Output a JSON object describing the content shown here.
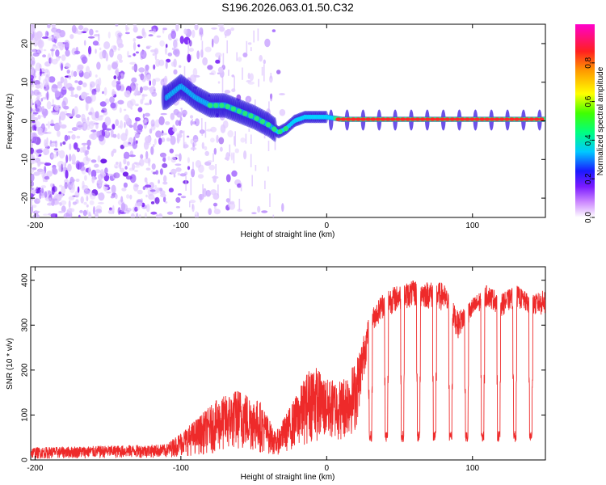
{
  "title": "S196.2026.063.01.50.C32",
  "chart_data": [
    {
      "type": "heatmap",
      "name": "spectrogram",
      "xlabel": "Height of straight line (km)",
      "ylabel": "Frequency (Hz)",
      "xlim": [
        -203,
        150
      ],
      "ylim": [
        -25,
        25
      ],
      "xticks": [
        -200,
        -100,
        0,
        100
      ],
      "xtick_labels": [
        "-200",
        "-100",
        "0",
        "100"
      ],
      "yticks": [
        20,
        10,
        0,
        -10,
        -20
      ],
      "ytick_labels": [
        "20",
        "10",
        "0",
        "-10",
        "-20"
      ],
      "signal_track": {
        "x": [
          -110,
          -100,
          -90,
          -80,
          -70,
          -60,
          -50,
          -40,
          -33,
          -28,
          -22,
          -15,
          -10,
          0,
          10,
          150
        ],
        "freq": [
          6,
          9,
          6,
          4,
          4,
          2.5,
          1,
          -1,
          -3,
          -2,
          0,
          1,
          1,
          1,
          0.4,
          0.4
        ]
      },
      "colorbar": {
        "label": "Normalized spectral amplitude",
        "range": [
          0,
          1
        ],
        "ticks": [
          0.0,
          0.2,
          0.4,
          0.6,
          0.8
        ],
        "tick_labels": [
          "0.0",
          "0.2",
          "0.4",
          "0.6",
          "0.8"
        ]
      }
    },
    {
      "type": "line",
      "name": "snr",
      "xlabel": "Height of straight line (km)",
      "ylabel": "SNR (10 * v/v)",
      "xlim": [
        -203,
        150
      ],
      "ylim": [
        0,
        430
      ],
      "xticks": [
        -200,
        -100,
        0,
        100
      ],
      "xtick_labels": [
        "-200",
        "-100",
        "0",
        "100"
      ],
      "yticks": [
        0,
        100,
        200,
        300,
        400
      ],
      "ytick_labels": [
        "0",
        "100",
        "200",
        "300",
        "400"
      ],
      "color": "#ee2a2a",
      "envelope": {
        "x": [
          -203,
          -110,
          -90,
          -75,
          -60,
          -45,
          -35,
          -20,
          -10,
          0,
          10,
          20,
          30,
          40,
          60,
          80,
          90,
          100,
          110,
          120,
          130,
          140,
          150
        ],
        "upper": [
          28,
          35,
          90,
          135,
          160,
          130,
          60,
          150,
          220,
          180,
          180,
          220,
          330,
          380,
          400,
          395,
          330,
          360,
          390,
          370,
          390,
          365,
          380
        ],
        "lower": [
          2,
          5,
          10,
          15,
          20,
          15,
          10,
          25,
          40,
          40,
          40,
          60,
          280,
          320,
          340,
          330,
          270,
          310,
          340,
          320,
          340,
          320,
          320
        ]
      },
      "dropout_centers": [
        8,
        19,
        30,
        41,
        52,
        63,
        74,
        85,
        96,
        107,
        118,
        129,
        140
      ],
      "dropout_level": 40
    }
  ]
}
